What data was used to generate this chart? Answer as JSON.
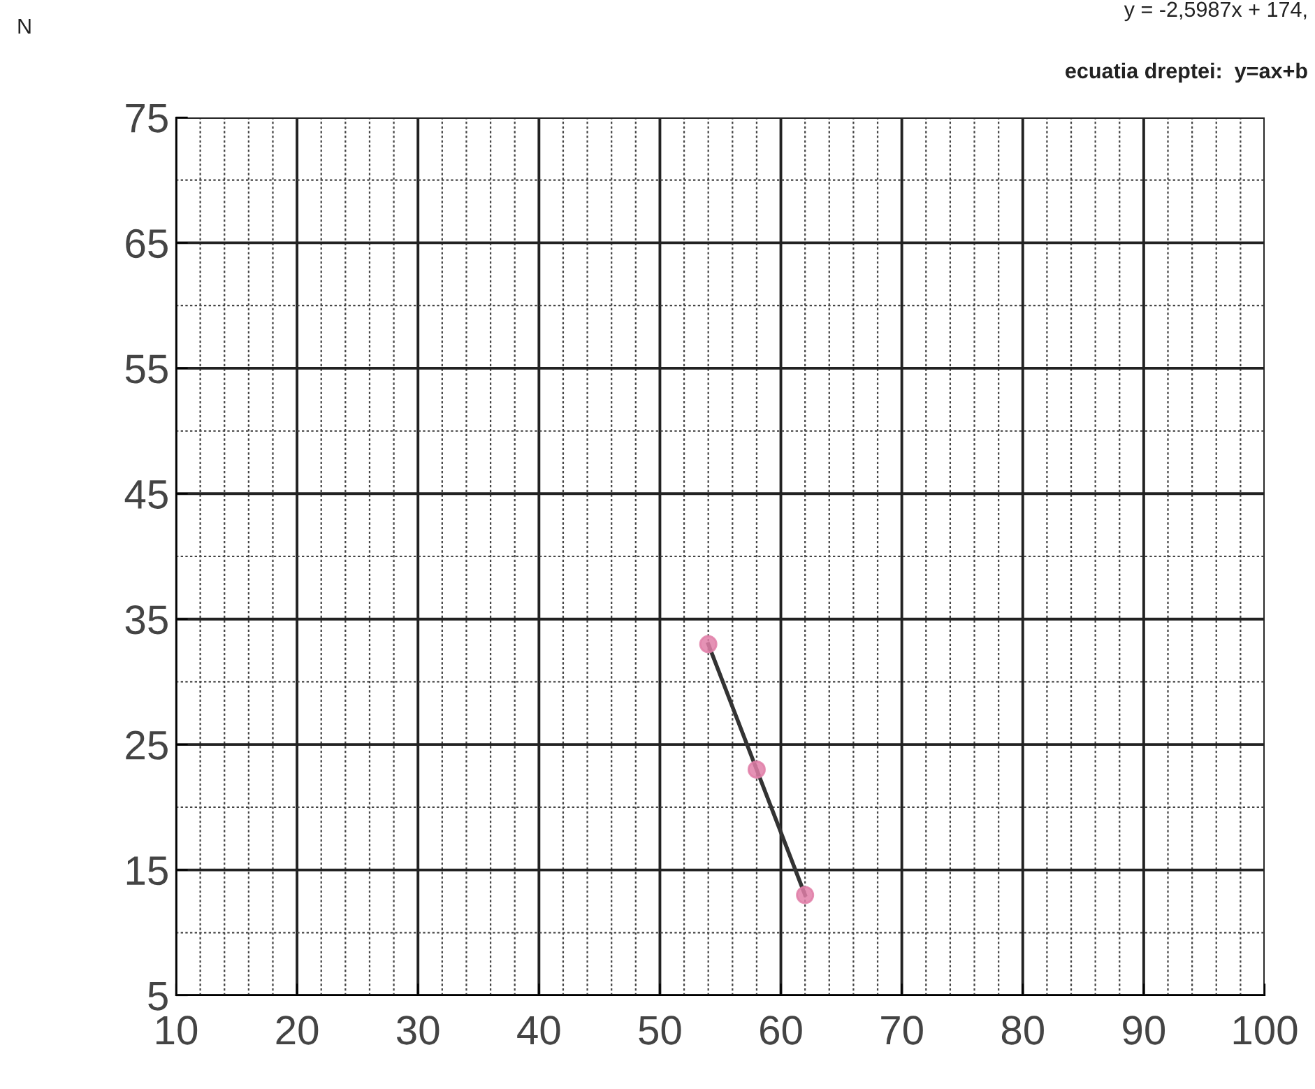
{
  "chart_data": {
    "type": "scatter",
    "annotations": [
      "N",
      "y = -2,5987x + 174,",
      "ecuatia dreptei:  y=ax+b"
    ],
    "series": [
      {
        "type": "line",
        "color": "#333333",
        "x": [
          54,
          62
        ],
        "values": [
          33,
          13
        ],
        "marker": "none"
      },
      {
        "color": "#e07fa8",
        "x": [
          54,
          58,
          62
        ],
        "values": [
          33,
          23,
          13
        ],
        "marker": "circle"
      }
    ],
    "xlim": [
      10,
      100
    ],
    "ylim": [
      5,
      75
    ],
    "xticks": [
      10,
      20,
      30,
      40,
      50,
      60,
      70,
      80,
      90,
      100,
      {
        "value": 12,
        "label": null
      },
      {
        "value": 14,
        "label": null
      },
      {
        "value": 16,
        "label": null
      },
      {
        "value": 18,
        "label": null
      },
      {
        "value": 22,
        "label": null
      },
      {
        "value": 24,
        "label": null
      },
      {
        "value": 26,
        "label": null
      },
      {
        "value": 28,
        "label": null
      },
      {
        "value": 32,
        "label": null
      },
      {
        "value": 34,
        "label": null
      },
      {
        "value": 36,
        "label": null
      },
      {
        "value": 38,
        "label": null
      },
      {
        "value": 42,
        "label": null
      },
      {
        "value": 44,
        "label": null
      },
      {
        "value": 46,
        "label": null
      },
      {
        "value": 48,
        "label": null
      },
      {
        "value": 52,
        "label": null
      },
      {
        "value": 54,
        "label": null
      },
      {
        "value": 56,
        "label": null
      },
      {
        "value": 58,
        "label": null
      },
      {
        "value": 62,
        "label": null
      },
      {
        "value": 64,
        "label": null
      },
      {
        "value": 66,
        "label": null
      },
      {
        "value": 68,
        "label": null
      },
      {
        "value": 72,
        "label": null
      },
      {
        "value": 74,
        "label": null
      },
      {
        "value": 76,
        "label": null
      },
      {
        "value": 78,
        "label": null
      },
      {
        "value": 82,
        "label": null
      },
      {
        "value": 84,
        "label": null
      },
      {
        "value": 86,
        "label": null
      },
      {
        "value": 88,
        "label": null
      },
      {
        "value": 92,
        "label": null
      },
      {
        "value": 94,
        "label": null
      },
      {
        "value": 96,
        "label": null
      },
      {
        "value": 98,
        "label": null
      }
    ],
    "yticks": [
      5,
      15,
      25,
      35,
      45,
      55,
      65,
      75,
      {
        "value": 10,
        "label": null
      },
      {
        "value": 20,
        "label": null
      },
      {
        "value": 30,
        "label": null
      },
      {
        "value": 40,
        "label": null
      },
      {
        "value": 50,
        "label": null
      },
      {
        "value": 60,
        "label": null
      },
      {
        "value": 70,
        "label": null
      }
    ],
    "grid": true
  }
}
